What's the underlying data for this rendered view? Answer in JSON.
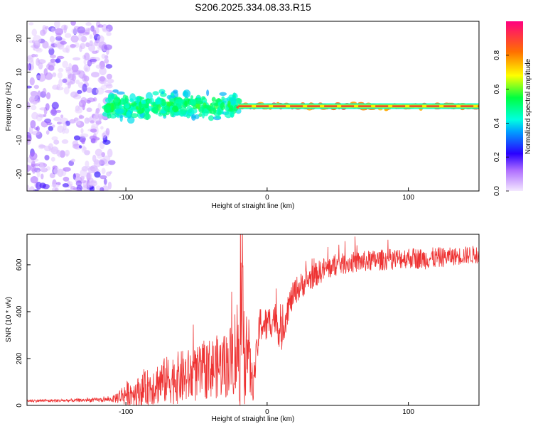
{
  "title": "S206.2025.334.08.33.R15",
  "colors": {
    "snr_line": "#ee3333",
    "ridge": "#dd2233",
    "axis": "#000000"
  },
  "chart_data": [
    {
      "type": "heatmap",
      "id": "spectrogram",
      "xlabel": "Height of straight line (km)",
      "ylabel": "Frequency (Hz)",
      "xlim": [
        -170,
        150
      ],
      "ylim": [
        -25,
        25
      ],
      "xticks": [
        -100,
        0,
        100
      ],
      "xtick_labels": [
        "-100",
        "0",
        "100"
      ],
      "yticks": [
        -20,
        -10,
        0,
        10,
        20
      ],
      "ytick_labels": [
        "-20",
        "-10",
        "0",
        "10",
        "20"
      ],
      "colorbar": {
        "label": "Normalized spectral amplitude",
        "range": [
          0.0,
          1.0
        ],
        "ticks": [
          0.0,
          0.2,
          0.4,
          0.6,
          0.8
        ],
        "tick_labels": [
          "0.0",
          "0.2",
          "0.4",
          "0.6",
          "0.8"
        ],
        "colormap": "rainbow"
      },
      "regions": [
        {
          "x_range": [
            -170,
            -110
          ],
          "description": "diffuse noise, all frequencies",
          "amplitude": [
            0.02,
            0.25
          ]
        },
        {
          "x_range": [
            -115,
            -20
          ],
          "freq_center": 0,
          "freq_spread": 5,
          "amplitude": [
            0.2,
            0.6
          ]
        },
        {
          "x_range": [
            -20,
            150
          ],
          "freq_center": 0,
          "freq_spread": 1,
          "amplitude": [
            0.6,
            1.0
          ]
        }
      ]
    },
    {
      "type": "line",
      "id": "snr",
      "xlabel": "Height of straight line (km)",
      "ylabel": "SNR (10 * v/v)",
      "xlim": [
        -170,
        150
      ],
      "ylim": [
        0,
        730
      ],
      "xticks": [
        -100,
        0,
        100
      ],
      "xtick_labels": [
        "-100",
        "0",
        "100"
      ],
      "yticks": [
        0,
        200,
        400,
        600
      ],
      "ytick_labels": [
        "0",
        "200",
        "400",
        "600"
      ],
      "series": [
        {
          "name": "SNR",
          "x": [
            -170,
            -150,
            -130,
            -110,
            -100,
            -90,
            -80,
            -70,
            -60,
            -50,
            -40,
            -30,
            -25,
            -20,
            -17,
            -15,
            -12,
            -10,
            -5,
            0,
            5,
            10,
            15,
            20,
            30,
            40,
            50,
            60,
            70,
            80,
            90,
            100,
            110,
            120,
            130,
            140,
            150
          ],
          "mean": [
            20,
            20,
            22,
            25,
            50,
            60,
            90,
            110,
            120,
            130,
            160,
            170,
            200,
            260,
            280,
            300,
            150,
            80,
            350,
            340,
            380,
            300,
            420,
            490,
            540,
            580,
            600,
            610,
            615,
            620,
            625,
            630,
            625,
            630,
            635,
            640,
            645
          ],
          "noise": [
            5,
            5,
            6,
            8,
            40,
            50,
            70,
            80,
            90,
            90,
            100,
            110,
            120,
            200,
            250,
            200,
            100,
            50,
            60,
            60,
            60,
            60,
            50,
            45,
            40,
            40,
            35,
            35,
            35,
            35,
            35,
            35,
            35,
            35,
            30,
            30,
            30
          ]
        }
      ]
    }
  ]
}
